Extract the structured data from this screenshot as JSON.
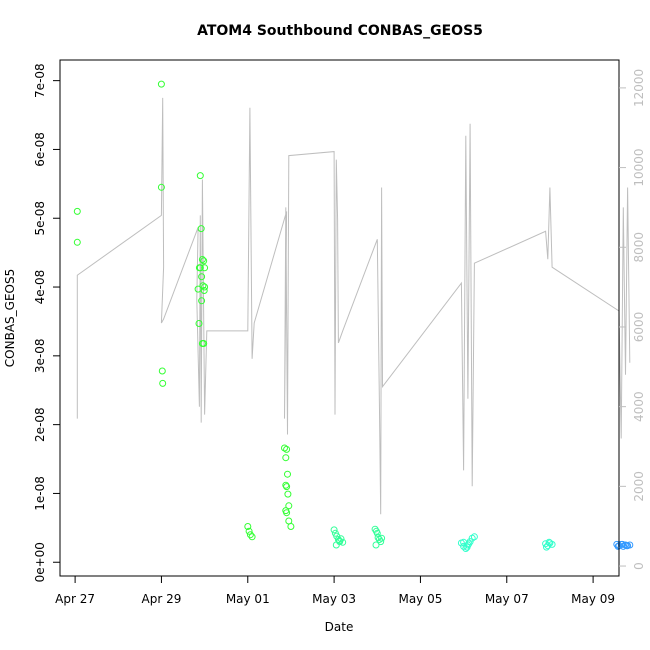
{
  "chart_data": {
    "type": "scatter",
    "title": "ATOM4 Southbound CONBAS_GEOS5",
    "xlabel": "Date",
    "ylabel": "CONBAS_GEOS5",
    "x_range": [
      -0.35,
      12.6
    ],
    "y_range": [
      -2e-09,
      7.3e-08
    ],
    "y2_range": [
      -250,
      12700
    ],
    "x_ticks": [
      {
        "value": 0,
        "label": "Apr 27"
      },
      {
        "value": 2,
        "label": "Apr 29"
      },
      {
        "value": 4,
        "label": "May 01"
      },
      {
        "value": 6,
        "label": "May 03"
      },
      {
        "value": 8,
        "label": "May 05"
      },
      {
        "value": 10,
        "label": "May 07"
      },
      {
        "value": 12,
        "label": "May 09"
      }
    ],
    "y_ticks": [
      {
        "value": 0,
        "label": "0e+00"
      },
      {
        "value": 1e-08,
        "label": "1e-08"
      },
      {
        "value": 2e-08,
        "label": "2e-08"
      },
      {
        "value": 3e-08,
        "label": "3e-08"
      },
      {
        "value": 4e-08,
        "label": "4e-08"
      },
      {
        "value": 5e-08,
        "label": "5e-08"
      },
      {
        "value": 6e-08,
        "label": "6e-08"
      },
      {
        "value": 7e-08,
        "label": "7e-08"
      }
    ],
    "y2_ticks": [
      {
        "value": 0,
        "label": "0"
      },
      {
        "value": 2000,
        "label": "2000"
      },
      {
        "value": 4000,
        "label": "4000"
      },
      {
        "value": 6000,
        "label": "6000"
      },
      {
        "value": 8000,
        "label": "8000"
      },
      {
        "value": 10000,
        "label": "10000"
      },
      {
        "value": 12000,
        "label": "12000"
      }
    ],
    "altitude_line": {
      "color": "#bebebe",
      "x": [
        0.05,
        0.05,
        2.0,
        2.03,
        2.05,
        2.0,
        2.05,
        2.85,
        2.82,
        2.88,
        2.9,
        2.92,
        2.95,
        3.0,
        3.05,
        4.0,
        4.05,
        4.05,
        4.1,
        4.15,
        4.9,
        4.85,
        4.88,
        4.92,
        4.95,
        6.0,
        6.02,
        6.05,
        6.08,
        6.1,
        6.2,
        7.0,
        7.05,
        7.08,
        7.1,
        7.12,
        8.95,
        9.0,
        9.05,
        9.1,
        9.15,
        9.2,
        9.25,
        10.9,
        10.95,
        11.0,
        11.05,
        12.6,
        12.65,
        12.7,
        12.75,
        12.8,
        12.85
      ],
      "y": [
        3700,
        7300,
        8800,
        11750,
        7500,
        6100,
        6200,
        8500,
        6700,
        4000,
        8800,
        3600,
        9700,
        3800,
        5900,
        5900,
        11500,
        11500,
        5200,
        6100,
        8900,
        3700,
        9000,
        3300,
        10300,
        10400,
        3800,
        10200,
        8700,
        5600,
        5900,
        8200,
        4100,
        1300,
        9500,
        4500,
        7100,
        2400,
        10800,
        4200,
        11100,
        2000,
        7600,
        8400,
        7700,
        9500,
        7500,
        6400,
        3200,
        9000,
        4800,
        9500,
        5100
      ]
    },
    "series": [
      {
        "color": "#33ff33",
        "x": [
          0.05,
          0.05,
          2.0,
          2.0,
          2.02,
          2.03,
          2.9,
          2.92,
          2.95,
          2.98,
          3.0,
          2.88,
          2.9,
          2.93,
          2.96,
          2.99,
          2.85,
          2.87,
          2.93,
          2.95,
          2.98,
          3.0
        ],
        "y": [
          5.1e-08,
          4.65e-08,
          6.95e-08,
          5.45e-08,
          2.78e-08,
          2.6e-08,
          5.62e-08,
          4.85e-08,
          4.4e-08,
          4.38e-08,
          4.28e-08,
          4.28e-08,
          4.28e-08,
          4.15e-08,
          4.02e-08,
          3.95e-08,
          3.97e-08,
          3.47e-08,
          3.8e-08,
          3.18e-08,
          3.18e-08,
          4e-08
        ]
      },
      {
        "color": "#33ff33",
        "x": [
          4.0,
          4.03,
          4.06,
          4.1,
          4.85,
          4.9,
          4.88,
          4.92,
          4.88,
          4.9,
          4.93,
          4.95,
          4.88,
          4.9,
          4.95,
          5.0
        ],
        "y": [
          5.2e-09,
          4.5e-09,
          4e-09,
          3.7e-09,
          1.66e-08,
          1.64e-08,
          1.52e-08,
          1.28e-08,
          1.12e-08,
          1.1e-08,
          9.9e-09,
          8.2e-09,
          7.5e-09,
          7.2e-09,
          6e-09,
          5.2e-09
        ]
      },
      {
        "color": "#33ff99",
        "x": [
          6.0,
          6.03,
          6.06,
          6.1,
          6.13,
          6.16,
          6.2,
          6.05,
          6.12,
          6.95,
          6.98,
          7.0,
          7.02,
          7.05,
          7.08,
          6.97,
          7.1
        ],
        "y": [
          4.7e-09,
          4.2e-09,
          3.8e-09,
          3.3e-09,
          3e-09,
          3.4e-09,
          2.9e-09,
          2.5e-09,
          3.1e-09,
          4.8e-09,
          4.5e-09,
          4.2e-09,
          3.6e-09,
          3.3e-09,
          3e-09,
          2.5e-09,
          3.5e-09
        ]
      },
      {
        "color": "#33ffcc",
        "x": [
          8.95,
          9.0,
          9.05,
          9.1,
          9.15,
          9.2,
          9.25,
          9.0,
          9.08,
          9.12,
          10.9,
          10.95,
          11.0,
          11.05,
          10.92,
          10.98
        ],
        "y": [
          2.8e-09,
          2.3e-09,
          2e-09,
          2.5e-09,
          3e-09,
          3.5e-09,
          3.7e-09,
          2.9e-09,
          2.2e-09,
          2.7e-09,
          2.7e-09,
          2.4e-09,
          2.8e-09,
          2.6e-09,
          2.2e-09,
          2.9e-09
        ]
      },
      {
        "color": "#3399ff",
        "x": [
          12.55,
          12.6,
          12.65,
          12.7,
          12.75,
          12.8,
          12.85,
          12.58,
          12.68,
          12.78
        ],
        "y": [
          2.6e-09,
          2.4e-09,
          2.6e-09,
          2.3e-09,
          2.5e-09,
          2.4e-09,
          2.5e-09,
          2.3e-09,
          2.6e-09,
          2.4e-09
        ]
      }
    ]
  }
}
